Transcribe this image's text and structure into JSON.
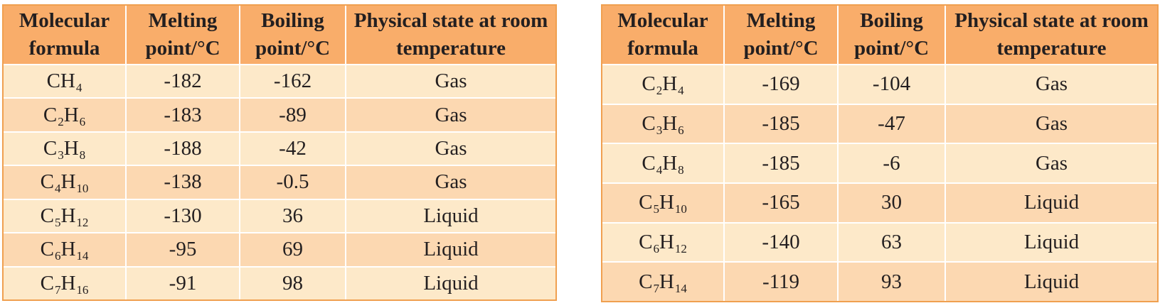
{
  "left_table": {
    "headers": [
      "Molecular formula",
      "Melting point/°C",
      "Boiling point/°C",
      "Physical state at room temperature"
    ],
    "rows": [
      {
        "formula": [
          {
            "el": "CH",
            "n": "4"
          }
        ],
        "mp": "-182",
        "bp": "-162",
        "state": "Gas"
      },
      {
        "formula": [
          {
            "el": "C",
            "n": "2"
          },
          {
            "el": "H",
            "n": "6"
          }
        ],
        "mp": "-183",
        "bp": "-89",
        "state": "Gas"
      },
      {
        "formula": [
          {
            "el": "C",
            "n": "3"
          },
          {
            "el": "H",
            "n": "8"
          }
        ],
        "mp": "-188",
        "bp": "-42",
        "state": "Gas"
      },
      {
        "formula": [
          {
            "el": "C",
            "n": "4"
          },
          {
            "el": "H",
            "n": "10"
          }
        ],
        "mp": "-138",
        "bp": "-0.5",
        "state": "Gas"
      },
      {
        "formula": [
          {
            "el": "C",
            "n": "5"
          },
          {
            "el": "H",
            "n": "12"
          }
        ],
        "mp": "-130",
        "bp": "36",
        "state": "Liquid"
      },
      {
        "formula": [
          {
            "el": "C",
            "n": "6"
          },
          {
            "el": "H",
            "n": "14"
          }
        ],
        "mp": "-95",
        "bp": "69",
        "state": "Liquid"
      },
      {
        "formula": [
          {
            "el": "C",
            "n": "7"
          },
          {
            "el": "H",
            "n": "16"
          }
        ],
        "mp": "-91",
        "bp": "98",
        "state": "Liquid"
      }
    ]
  },
  "right_table": {
    "headers": [
      "Molecular formula",
      "Melting point/°C",
      "Boiling point/°C",
      "Physical state at room temperature"
    ],
    "rows": [
      {
        "formula": [
          {
            "el": "C",
            "n": "2"
          },
          {
            "el": "H",
            "n": "4"
          }
        ],
        "mp": "-169",
        "bp": "-104",
        "state": "Gas"
      },
      {
        "formula": [
          {
            "el": "C",
            "n": "3"
          },
          {
            "el": "H",
            "n": "6"
          }
        ],
        "mp": "-185",
        "bp": "-47",
        "state": "Gas"
      },
      {
        "formula": [
          {
            "el": "C",
            "n": "4"
          },
          {
            "el": "H",
            "n": "8"
          }
        ],
        "mp": "-185",
        "bp": "-6",
        "state": "Gas"
      },
      {
        "formula": [
          {
            "el": "C",
            "n": "5"
          },
          {
            "el": "H",
            "n": "10"
          }
        ],
        "mp": "-165",
        "bp": "30",
        "state": "Liquid"
      },
      {
        "formula": [
          {
            "el": "C",
            "n": "6"
          },
          {
            "el": "H",
            "n": "12"
          }
        ],
        "mp": "-140",
        "bp": "63",
        "state": "Liquid"
      },
      {
        "formula": [
          {
            "el": "C",
            "n": "7"
          },
          {
            "el": "H",
            "n": "14"
          }
        ],
        "mp": "-119",
        "bp": "93",
        "state": "Liquid"
      }
    ]
  },
  "colors": {
    "border": "#f0a050",
    "header_bg": "#f9ad6a",
    "row_light": "#fde9c9",
    "row_dark": "#fcd8b1"
  }
}
